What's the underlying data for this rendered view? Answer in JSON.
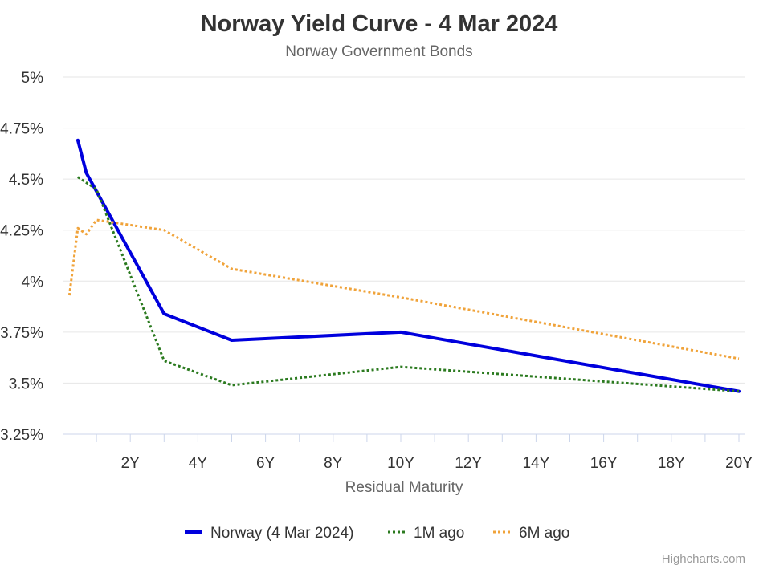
{
  "chart_data": {
    "type": "line",
    "title": "Norway Yield Curve - 4 Mar 2024",
    "subtitle": "Norway Government Bonds",
    "xlabel": "Residual Maturity",
    "ylabel": "",
    "xlim": [
      0,
      20.1
    ],
    "ylim": [
      3.25,
      5.0
    ],
    "x_ticks": [
      2,
      4,
      6,
      8,
      10,
      12,
      14,
      16,
      18,
      20
    ],
    "x_tick_labels": [
      "2Y",
      "4Y",
      "6Y",
      "8Y",
      "10Y",
      "12Y",
      "14Y",
      "16Y",
      "18Y",
      "20Y"
    ],
    "y_ticks": [
      3.25,
      3.5,
      3.75,
      4.0,
      4.25,
      4.5,
      4.75,
      5.0
    ],
    "y_tick_labels": [
      "3.25%",
      "3.5%",
      "3.75%",
      "4%",
      "4.25%",
      "4.5%",
      "4.75%",
      "5%"
    ],
    "grid": true,
    "legend_position": "bottom-center",
    "series": [
      {
        "name": "Norway (4 Mar 2024)",
        "color": "#0000dd",
        "style": "solid",
        "x": [
          0.45,
          0.7,
          3.0,
          5.0,
          10.0,
          20.0
        ],
        "y": [
          4.69,
          4.53,
          3.84,
          3.71,
          3.75,
          3.46
        ]
      },
      {
        "name": "1M ago",
        "color": "#2b7a1f",
        "style": "dotted",
        "x": [
          0.45,
          1.0,
          3.0,
          5.0,
          10.0,
          20.0
        ],
        "y": [
          4.51,
          4.45,
          3.61,
          3.49,
          3.58,
          3.46
        ]
      },
      {
        "name": "6M ago",
        "color": "#f0a33a",
        "style": "dotted",
        "x": [
          0.2,
          0.45,
          0.7,
          1.0,
          3.0,
          5.0,
          10.0,
          20.0
        ],
        "y": [
          3.93,
          4.26,
          4.23,
          4.3,
          4.25,
          4.06,
          3.92,
          3.62
        ]
      }
    ],
    "credits": "Highcharts.com"
  }
}
